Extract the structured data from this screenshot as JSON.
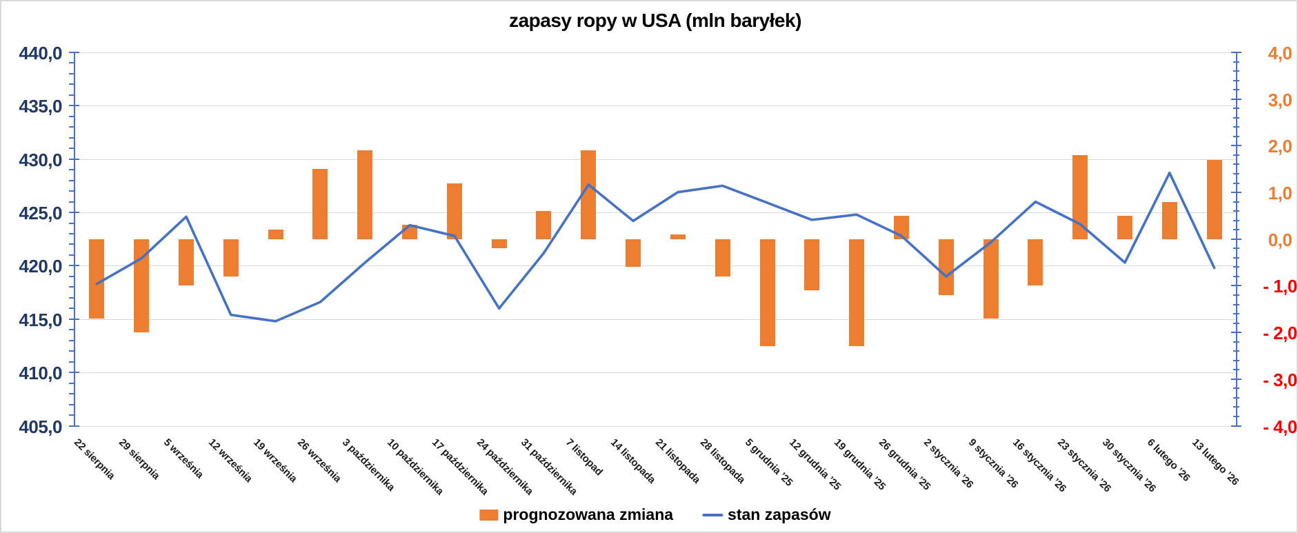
{
  "chart_data": {
    "type": "bar-line-combo",
    "title": "zapasy ropy w USA (mln baryłek)",
    "categories": [
      "22 sierpnia",
      "29 sierpnia",
      "5 września",
      "12 września",
      "19 września",
      "26 września",
      "3 października",
      "10 października",
      "17 października",
      "24 października",
      "31 października",
      "7 listopad",
      "14 listopada",
      "21 listopada",
      "28 listopada",
      "5 grudnia ’25",
      "12 grudnia ’25",
      "19 grudnia ’25",
      "26 grudnia ’25",
      "2 stycznia ’26",
      "9 stycznia ’26",
      "16 stycznia ’26",
      "23 stycznia ’26",
      "30 stycznia ’26",
      "6 lutego ’26",
      "13 lutego ’26"
    ],
    "series": [
      {
        "name": "prognozowana zmiana",
        "type": "bar",
        "axis": "right",
        "color": "#ed7d31",
        "values": [
          -1.7,
          -2.0,
          -1.0,
          -0.8,
          0.2,
          1.5,
          1.9,
          0.3,
          1.2,
          -0.2,
          0.6,
          1.9,
          -0.6,
          0.1,
          -0.8,
          -2.3,
          -1.1,
          -2.3,
          0.5,
          -1.2,
          -1.7,
          -1.0,
          1.8,
          0.5,
          0.8,
          1.7
        ]
      },
      {
        "name": "stan zapasów",
        "type": "line",
        "axis": "left",
        "color": "#4472c4",
        "values": [
          418.3,
          420.7,
          424.6,
          415.4,
          414.8,
          416.6,
          420.3,
          423.8,
          422.8,
          416.0,
          421.2,
          427.6,
          424.2,
          426.9,
          427.5,
          425.9,
          424.3,
          424.8,
          422.8,
          419.0,
          422.2,
          426.0,
          423.9,
          420.3,
          428.7,
          419.8
        ]
      }
    ],
    "left_axis": {
      "min": 405,
      "max": 440,
      "major_step": 5,
      "minor_step": 1,
      "tick_labels": [
        "440,0",
        "435,0",
        "430,0",
        "425,0",
        "420,0",
        "415,0",
        "410,0",
        "405,0"
      ],
      "label_color": "#1f3864"
    },
    "right_axis": {
      "min": -4,
      "max": 4,
      "major_step": 1,
      "minor_step": 0.2,
      "tick_labels": [
        "4,0",
        "3,0",
        "2,0",
        "1,0",
        "0,0",
        "- 1,0",
        "- 2,0",
        "- 3,0",
        "- 4,0"
      ],
      "positive_color": "#ed7d31",
      "negative_color": "#ff0000"
    },
    "legend_position": "bottom",
    "grid": true,
    "gridline_color": "#d9d9d9",
    "axis_line_color": "#4472c4",
    "background_color": "#ffffff"
  }
}
